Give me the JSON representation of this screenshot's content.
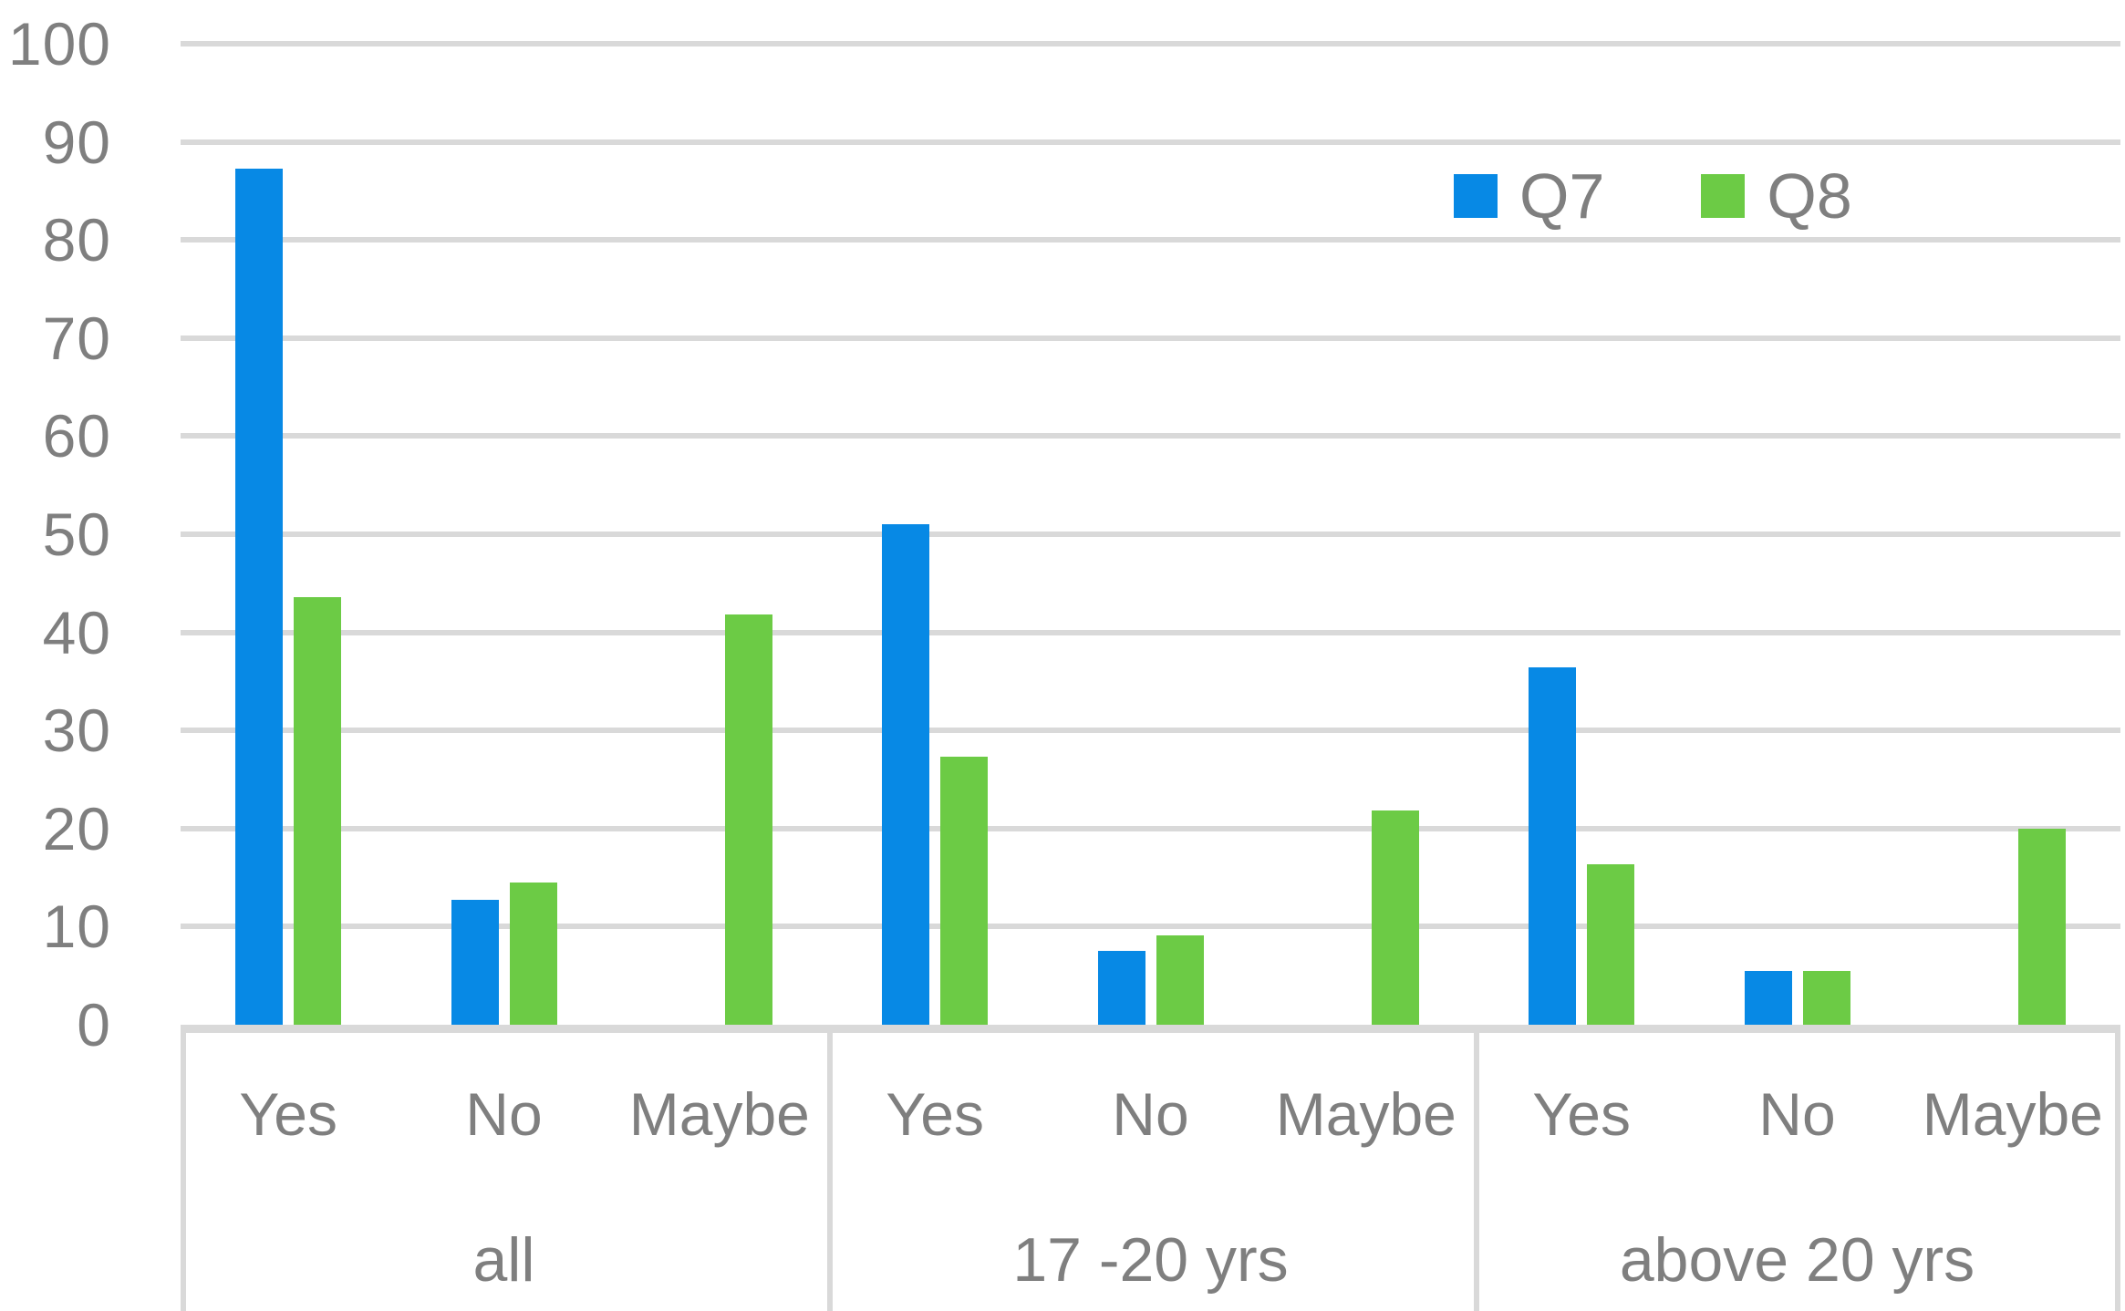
{
  "chart_data": {
    "type": "bar",
    "title": "",
    "legend_position": "top-right",
    "grid": true,
    "categories_level1": [
      "Yes",
      "No",
      "Maybe"
    ],
    "groups": [
      "all",
      "17 -20 yrs",
      "above 20 yrs"
    ],
    "yticks": [
      "0",
      "10",
      "20",
      "30",
      "40",
      "50",
      "60",
      "70",
      "80",
      "90",
      "100"
    ],
    "ylim": [
      0,
      100
    ],
    "series": [
      {
        "name": "Q7",
        "color": "#0789E5",
        "values": [
          87.3,
          12.7,
          0,
          51.0,
          7.5,
          0,
          36.4,
          5.5,
          0
        ]
      },
      {
        "name": "Q8",
        "color": "#6CCB45",
        "values": [
          43.6,
          14.5,
          41.8,
          27.3,
          9.1,
          21.8,
          16.4,
          5.5,
          20.0
        ]
      }
    ]
  },
  "colors": {
    "gridline": "#D9D9D9",
    "axis_text": "#7F7F7F",
    "background": "#FFFFFF"
  }
}
